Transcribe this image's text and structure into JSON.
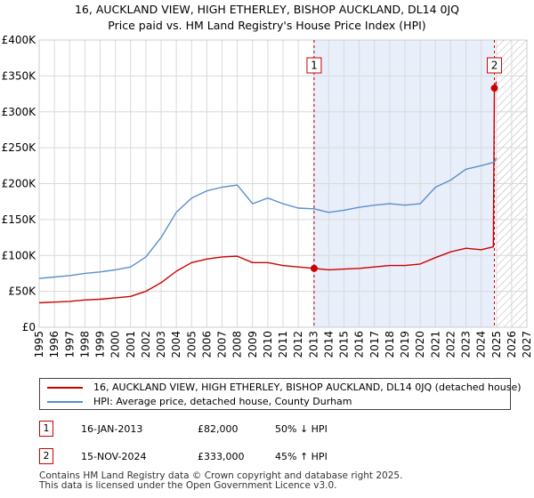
{
  "chart_data": {
    "type": "line",
    "title": "16, AUCKLAND VIEW, HIGH ETHERLEY, BISHOP AUCKLAND, DL14 0JQ",
    "subtitle": "Price paid vs. HM Land Registry's House Price Index (HPI)",
    "xlabel": "",
    "ylabel": "",
    "xlim": [
      1995,
      2027
    ],
    "ylim": [
      0,
      400000
    ],
    "x_ticks": [
      "1995",
      "1996",
      "1997",
      "1998",
      "1999",
      "2000",
      "2001",
      "2002",
      "2003",
      "2004",
      "2005",
      "2006",
      "2007",
      "2008",
      "2009",
      "2010",
      "2011",
      "2012",
      "2013",
      "2014",
      "2015",
      "2016",
      "2017",
      "2018",
      "2019",
      "2020",
      "2021",
      "2022",
      "2023",
      "2024",
      "2025",
      "2026",
      "2027"
    ],
    "y_ticks": [
      {
        "value": 0,
        "label": "£0"
      },
      {
        "value": 50000,
        "label": "£50K"
      },
      {
        "value": 100000,
        "label": "£100K"
      },
      {
        "value": 150000,
        "label": "£150K"
      },
      {
        "value": 200000,
        "label": "£200K"
      },
      {
        "value": 250000,
        "label": "£250K"
      },
      {
        "value": 300000,
        "label": "£300K"
      },
      {
        "value": 350000,
        "label": "£350K"
      },
      {
        "value": 400000,
        "label": "£400K"
      }
    ],
    "series": [
      {
        "name": "16, AUCKLAND VIEW, HIGH ETHERLEY, BISHOP AUCKLAND, DL14 0JQ (detached house)",
        "color": "#cc0000",
        "points": [
          [
            1995.0,
            34000
          ],
          [
            1996.0,
            35000
          ],
          [
            1997.0,
            36000
          ],
          [
            1998.0,
            38000
          ],
          [
            1999.0,
            39000
          ],
          [
            2000.0,
            41000
          ],
          [
            2001.0,
            43000
          ],
          [
            2002.0,
            50000
          ],
          [
            2003.0,
            62000
          ],
          [
            2004.0,
            78000
          ],
          [
            2005.0,
            90000
          ],
          [
            2006.0,
            95000
          ],
          [
            2007.0,
            98000
          ],
          [
            2008.0,
            99000
          ],
          [
            2009.0,
            90000
          ],
          [
            2010.0,
            90000
          ],
          [
            2011.0,
            86000
          ],
          [
            2012.0,
            84000
          ],
          [
            2013.04,
            82000
          ],
          [
            2014.0,
            80000
          ],
          [
            2015.0,
            81000
          ],
          [
            2016.0,
            82000
          ],
          [
            2017.0,
            84000
          ],
          [
            2018.0,
            86000
          ],
          [
            2019.0,
            86000
          ],
          [
            2020.0,
            88000
          ],
          [
            2021.0,
            97000
          ],
          [
            2022.0,
            105000
          ],
          [
            2023.0,
            110000
          ],
          [
            2024.0,
            108000
          ],
          [
            2024.8,
            112000
          ],
          [
            2024.87,
            333000
          ],
          [
            2025.0,
            342000
          ]
        ]
      },
      {
        "name": "HPI: Average price, detached house, County Durham",
        "color": "#5b8fc9",
        "points": [
          [
            1995.0,
            68000
          ],
          [
            1996.0,
            70000
          ],
          [
            1997.0,
            72000
          ],
          [
            1998.0,
            75000
          ],
          [
            1999.0,
            77000
          ],
          [
            2000.0,
            80000
          ],
          [
            2001.0,
            84000
          ],
          [
            2002.0,
            98000
          ],
          [
            2003.0,
            125000
          ],
          [
            2004.0,
            160000
          ],
          [
            2005.0,
            180000
          ],
          [
            2006.0,
            190000
          ],
          [
            2007.0,
            195000
          ],
          [
            2008.0,
            198000
          ],
          [
            2009.0,
            172000
          ],
          [
            2010.0,
            180000
          ],
          [
            2011.0,
            172000
          ],
          [
            2012.0,
            166000
          ],
          [
            2013.04,
            165000
          ],
          [
            2014.0,
            160000
          ],
          [
            2015.0,
            163000
          ],
          [
            2016.0,
            167000
          ],
          [
            2017.0,
            170000
          ],
          [
            2018.0,
            172000
          ],
          [
            2019.0,
            170000
          ],
          [
            2020.0,
            172000
          ],
          [
            2021.0,
            195000
          ],
          [
            2022.0,
            205000
          ],
          [
            2023.0,
            220000
          ],
          [
            2024.0,
            225000
          ],
          [
            2024.87,
            230000
          ],
          [
            2025.0,
            236000
          ]
        ]
      }
    ],
    "annotations": [
      {
        "label": "1",
        "x": 2013.04,
        "value": 82000
      },
      {
        "label": "2",
        "x": 2024.87,
        "value": 333000
      }
    ],
    "shaded_range": [
      2013.04,
      2024.87
    ],
    "hatched_from": 2025.0
  },
  "legend": {
    "property_label": "16, AUCKLAND VIEW, HIGH ETHERLEY, BISHOP AUCKLAND, DL14 0JQ (detached house)",
    "hpi_label": "HPI: Average price, detached house, County Durham"
  },
  "transactions": [
    {
      "num": "1",
      "date": "16-JAN-2013",
      "price": "£82,000",
      "hpi_change": "50% ↓ HPI"
    },
    {
      "num": "2",
      "date": "15-NOV-2024",
      "price": "£333,000",
      "hpi_change": "45% ↑ HPI"
    }
  ],
  "footer": {
    "line1": "Contains HM Land Registry data © Crown copyright and database right 2025.",
    "line2": "This data is licensed under the Open Government Licence v3.0."
  }
}
